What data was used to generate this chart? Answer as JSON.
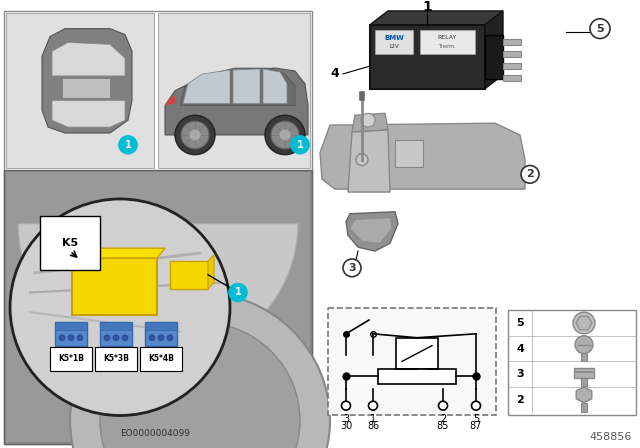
{
  "bg_color": "#ffffff",
  "top_left_bg": "#e8e8e8",
  "engine_bg": "#b0b0b0",
  "circle_color": "#00bcd4",
  "circle_text_color": "#ffffff",
  "yellow_color": "#f5d800",
  "yellow_edge": "#c8a000",
  "blue_connector": "#4488cc",
  "k5_label": "K5",
  "k5_labels": [
    "K5*1B",
    "K5*3B",
    "K5*4B"
  ],
  "pin_labels": [
    "3",
    "1",
    "2",
    "5"
  ],
  "pin_codes": [
    "30",
    "86",
    "85",
    "87"
  ],
  "doc_number": "EO0000004099",
  "ref_number": "458856",
  "part_label_1": "1",
  "part_label_2": "2",
  "part_label_3": "3",
  "part_label_4": "4",
  "part_label_5": "5"
}
